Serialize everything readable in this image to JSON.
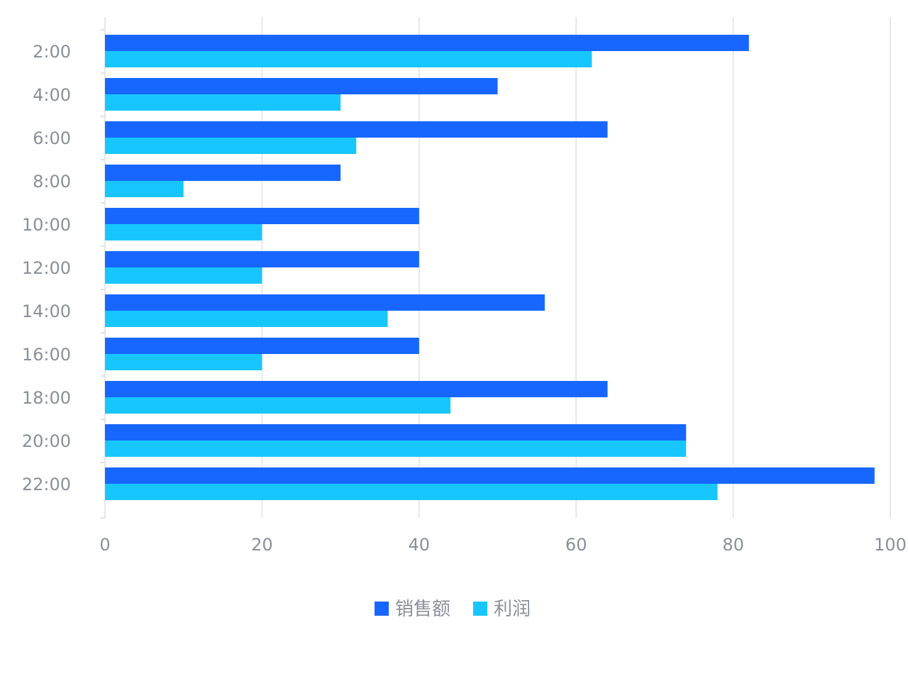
{
  "chart_data": {
    "type": "bar",
    "orientation": "horizontal",
    "categories": [
      "2:00",
      "4:00",
      "6:00",
      "8:00",
      "10:00",
      "12:00",
      "14:00",
      "16:00",
      "18:00",
      "20:00",
      "22:00"
    ],
    "series": [
      {
        "name": "销售额",
        "color": "#1766ff",
        "values": [
          82,
          50,
          64,
          30,
          40,
          40,
          56,
          40,
          64,
          74,
          98
        ]
      },
      {
        "name": "利润",
        "color": "#18c6ff",
        "values": [
          62,
          30,
          32,
          10,
          20,
          20,
          36,
          20,
          44,
          74,
          78
        ]
      }
    ],
    "xlim": [
      0,
      100
    ],
    "x_ticks": [
      "0",
      "20",
      "40",
      "60",
      "80",
      "100"
    ],
    "grid": true,
    "legend_position": "bottom-center"
  }
}
